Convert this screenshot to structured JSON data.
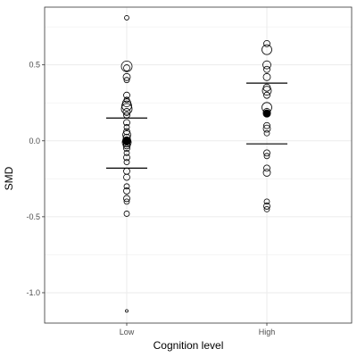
{
  "chart_data": {
    "type": "scatter",
    "xlabel": "Cognition level",
    "ylabel": "SMD",
    "categories": [
      "Low",
      "High"
    ],
    "ylim": [
      -1.2,
      0.88
    ],
    "y_ticks": [
      -1.0,
      -0.5,
      0.0,
      0.5
    ],
    "y_tick_labels": [
      "-1.0",
      "-0.5",
      "0.0",
      "0.5"
    ],
    "grid": true,
    "legend": "none",
    "colors": {
      "points": "#000000",
      "grid": "#ebebeb",
      "panel_border": "#333333"
    },
    "series": [
      {
        "category": "Low",
        "mean": 0.0,
        "ci_upper": 0.15,
        "ci_lower": -0.18,
        "points": [
          {
            "y": 0.81,
            "size": 2.5
          },
          {
            "y": 0.49,
            "size": 6
          },
          {
            "y": 0.48,
            "size": 3.5
          },
          {
            "y": 0.42,
            "size": 4
          },
          {
            "y": 0.4,
            "size": 3
          },
          {
            "y": 0.3,
            "size": 3.5
          },
          {
            "y": 0.27,
            "size": 3
          },
          {
            "y": 0.25,
            "size": 4.5
          },
          {
            "y": 0.23,
            "size": 5.5
          },
          {
            "y": 0.21,
            "size": 6
          },
          {
            "y": 0.19,
            "size": 4
          },
          {
            "y": 0.17,
            "size": 3.5
          },
          {
            "y": 0.12,
            "size": 3.5
          },
          {
            "y": 0.09,
            "size": 3
          },
          {
            "y": 0.06,
            "size": 3.5
          },
          {
            "y": 0.04,
            "size": 4.5
          },
          {
            "y": 0.02,
            "size": 4
          },
          {
            "y": 0.0,
            "size": 4.5
          },
          {
            "y": -0.01,
            "size": 5
          },
          {
            "y": -0.02,
            "size": 3.5
          },
          {
            "y": -0.03,
            "size": 4
          },
          {
            "y": -0.05,
            "size": 3.5
          },
          {
            "y": -0.08,
            "size": 3
          },
          {
            "y": -0.11,
            "size": 3.5
          },
          {
            "y": -0.14,
            "size": 3
          },
          {
            "y": -0.2,
            "size": 3.5
          },
          {
            "y": -0.24,
            "size": 3.5
          },
          {
            "y": -0.3,
            "size": 3
          },
          {
            "y": -0.33,
            "size": 3.5
          },
          {
            "y": -0.38,
            "size": 3.5
          },
          {
            "y": -0.4,
            "size": 3
          },
          {
            "y": -0.48,
            "size": 3
          },
          {
            "y": -1.12,
            "size": 1.5
          }
        ]
      },
      {
        "category": "High",
        "mean": 0.18,
        "ci_upper": 0.38,
        "ci_lower": -0.02,
        "points": [
          {
            "y": 0.64,
            "size": 3.5
          },
          {
            "y": 0.6,
            "size": 5.5
          },
          {
            "y": 0.5,
            "size": 4.5
          },
          {
            "y": 0.47,
            "size": 3.5
          },
          {
            "y": 0.42,
            "size": 4
          },
          {
            "y": 0.35,
            "size": 4
          },
          {
            "y": 0.33,
            "size": 5
          },
          {
            "y": 0.3,
            "size": 3.5
          },
          {
            "y": 0.22,
            "size": 5.5
          },
          {
            "y": 0.19,
            "size": 4
          },
          {
            "y": 0.18,
            "size": 3.5
          },
          {
            "y": 0.1,
            "size": 3.5
          },
          {
            "y": 0.08,
            "size": 4
          },
          {
            "y": 0.05,
            "size": 3
          },
          {
            "y": -0.08,
            "size": 3.5
          },
          {
            "y": -0.1,
            "size": 3
          },
          {
            "y": -0.18,
            "size": 3.5
          },
          {
            "y": -0.21,
            "size": 4
          },
          {
            "y": -0.4,
            "size": 3
          },
          {
            "y": -0.43,
            "size": 3.5
          },
          {
            "y": -0.45,
            "size": 3
          }
        ]
      }
    ]
  }
}
